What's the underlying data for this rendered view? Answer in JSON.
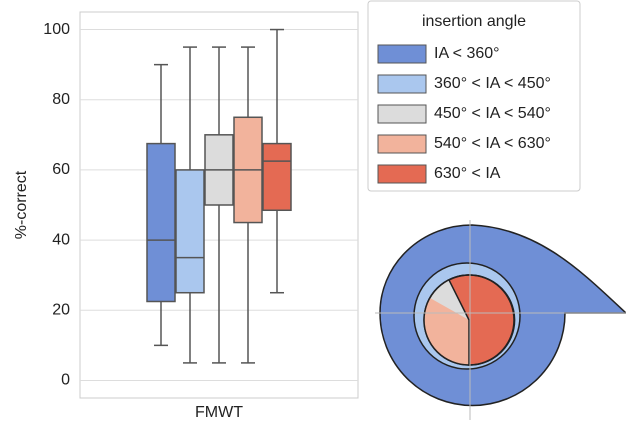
{
  "chart_data": {
    "type": "box",
    "categories": [
      "FMWT"
    ],
    "ylabel": "%-correct",
    "ylim": [
      -5,
      105
    ],
    "yticks": [
      0,
      20,
      40,
      60,
      80,
      100
    ],
    "grid": true,
    "legend_title": "insertion angle",
    "legend_position": "outside-right",
    "series": [
      {
        "name": "IA < 360°",
        "color": "#6f8fd6",
        "whislo": 10,
        "q1": 22.5,
        "median": 40,
        "q3": 67.5,
        "whishi": 90
      },
      {
        "name": "360° < IA < 450°",
        "color": "#aac7ee",
        "whislo": 5,
        "q1": 25,
        "median": 35,
        "q3": 60,
        "whishi": 95
      },
      {
        "name": "450° < IA < 540°",
        "color": "#dcdcdc",
        "whislo": 5,
        "q1": 50,
        "median": 60,
        "q3": 70,
        "whishi": 95
      },
      {
        "name": "540° < IA < 630°",
        "color": "#f2b39c",
        "whislo": 5,
        "q1": 45,
        "median": 60,
        "q3": 75,
        "whishi": 95
      },
      {
        "name": "630° < IA",
        "color": "#e46a53",
        "whislo": 25,
        "q1": 48.5,
        "median": 62.5,
        "q3": 67.5,
        "whishi": 100
      }
    ]
  }
}
